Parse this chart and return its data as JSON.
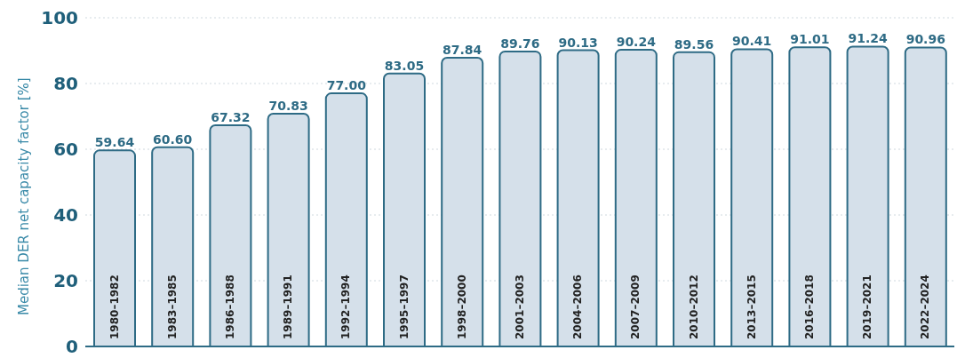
{
  "chart_data": {
    "type": "bar",
    "ylabel": "Median DER net capacity factor [%]",
    "categories": [
      "1980–1982",
      "1983–1985",
      "1986–1988",
      "1989–1991",
      "1992–1994",
      "1995–1997",
      "1998–2000",
      "2001–2003",
      "2004–2006",
      "2007–2009",
      "2010–2012",
      "2013–2015",
      "2016–2018",
      "2019–2021",
      "2022–2024"
    ],
    "values": [
      59.64,
      60.6,
      67.32,
      70.83,
      77,
      83.05,
      87.84,
      89.76,
      90.13,
      90.24,
      89.56,
      90.41,
      91.01,
      91.24,
      90.96
    ],
    "value_labels": [
      "59.64",
      "60.60",
      "67.32",
      "70.83",
      "77.00",
      "83.05",
      "87.84",
      "89.76",
      "90.13",
      "90.24",
      "89.56",
      "90.41",
      "91.01",
      "91.24",
      "90.96"
    ],
    "color": "#d5e0ea",
    "ylim": [
      0,
      100
    ],
    "yticks": [
      0,
      20,
      40,
      60,
      80,
      100
    ],
    "grid": "y"
  }
}
